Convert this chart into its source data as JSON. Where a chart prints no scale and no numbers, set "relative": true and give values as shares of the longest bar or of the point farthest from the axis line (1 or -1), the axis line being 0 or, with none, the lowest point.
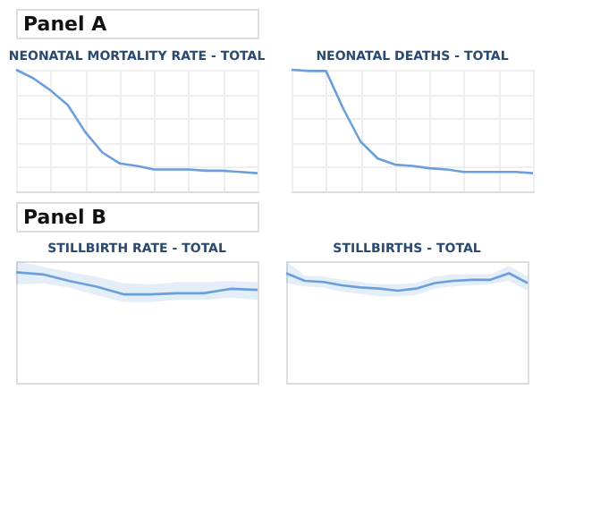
{
  "chart_data": [
    {
      "type": "line",
      "title": "NEONATAL MORTALITY RATE - TOTAL",
      "annotations": [
        "Panel A"
      ],
      "relative": true,
      "grid": true,
      "tick_labels": false,
      "categories": [
        null,
        null,
        null,
        null,
        null,
        null,
        null,
        null,
        null,
        null,
        null,
        null,
        null,
        null,
        null
      ],
      "series": [
        {
          "color": "#6a9fdc",
          "values": [
            1,
            0.93,
            0.83,
            0.71,
            0.49,
            0.32,
            0.23,
            0.21,
            0.18,
            0.18,
            0.18,
            0.17,
            0.17,
            0.16,
            0.15
          ]
        }
      ]
    },
    {
      "type": "line",
      "title": "NEONATAL DEATHS - TOTAL",
      "relative": true,
      "grid": true,
      "tick_labels": false,
      "categories": [
        null,
        null,
        null,
        null,
        null,
        null,
        null,
        null,
        null,
        null,
        null,
        null,
        null,
        null,
        null
      ],
      "series": [
        {
          "color": "#6a9fdc",
          "values": [
            1,
            0.99,
            0.99,
            0.68,
            0.41,
            0.27,
            0.22,
            0.21,
            0.19,
            0.18,
            0.16,
            0.16,
            0.16,
            0.16,
            0.15
          ]
        }
      ]
    },
    {
      "type": "line",
      "title": "STILLBIRTH RATE - TOTAL",
      "annotations": [
        "Panel B"
      ],
      "relative": true,
      "grid": true,
      "tick_labels": false,
      "categories": [
        null,
        null,
        null,
        null,
        null,
        null,
        null,
        null,
        null,
        null
      ],
      "series": [
        {
          "color": "#6a9fdc",
          "values": [
            1,
            0.98,
            0.92,
            0.87,
            0.8,
            0.8,
            0.81,
            0.81,
            0.85,
            0.84
          ],
          "upper": [
            1.1,
            1.05,
            1.0,
            0.96,
            0.9,
            0.89,
            0.91,
            0.91,
            0.92,
            0.91
          ],
          "lower": [
            0.89,
            0.9,
            0.86,
            0.79,
            0.73,
            0.73,
            0.75,
            0.75,
            0.77,
            0.75
          ]
        }
      ]
    },
    {
      "type": "line",
      "title": "STILLBIRTHS - TOTAL",
      "relative": true,
      "grid": true,
      "tick_labels": false,
      "categories": [
        null,
        null,
        null,
        null,
        null,
        null,
        null,
        null,
        null,
        null,
        null,
        null,
        null,
        null
      ],
      "series": [
        {
          "color": "#6a9fdc",
          "values": [
            1,
            0.93,
            0.92,
            0.89,
            0.87,
            0.86,
            0.84,
            0.86,
            0.91,
            0.93,
            0.94,
            0.94,
            1,
            0.91
          ],
          "upper": [
            1.11,
            0.98,
            0.97,
            0.94,
            0.92,
            0.9,
            0.9,
            0.91,
            0.97,
            0.99,
            0.99,
            0.99,
            1.07,
            0.97
          ],
          "lower": [
            0.91,
            0.88,
            0.87,
            0.83,
            0.81,
            0.79,
            0.79,
            0.8,
            0.86,
            0.88,
            0.89,
            0.9,
            0.93,
            0.84
          ]
        }
      ]
    }
  ]
}
